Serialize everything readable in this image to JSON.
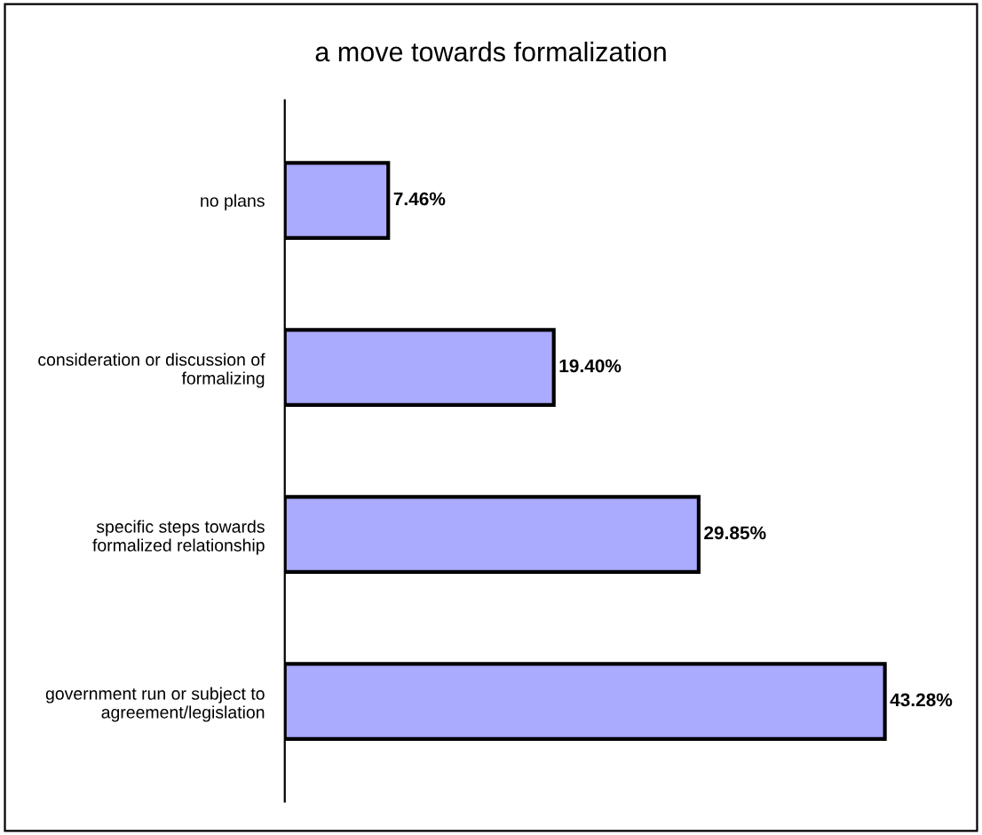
{
  "chart_data": {
    "type": "bar",
    "orientation": "horizontal",
    "title": "a move towards formalization",
    "categories": [
      "no plans",
      "consideration or discussion of\nformalizing",
      "specific steps towards\nformalized relationship",
      "government run or subject to\nagreement/legislation"
    ],
    "values": [
      7.46,
      19.4,
      29.85,
      43.28
    ],
    "value_labels": [
      "7.46%",
      "19.40%",
      "29.85%",
      "43.28%"
    ],
    "color": "#aaaaff",
    "grid": false,
    "legend": false,
    "tick_labels": "y"
  }
}
